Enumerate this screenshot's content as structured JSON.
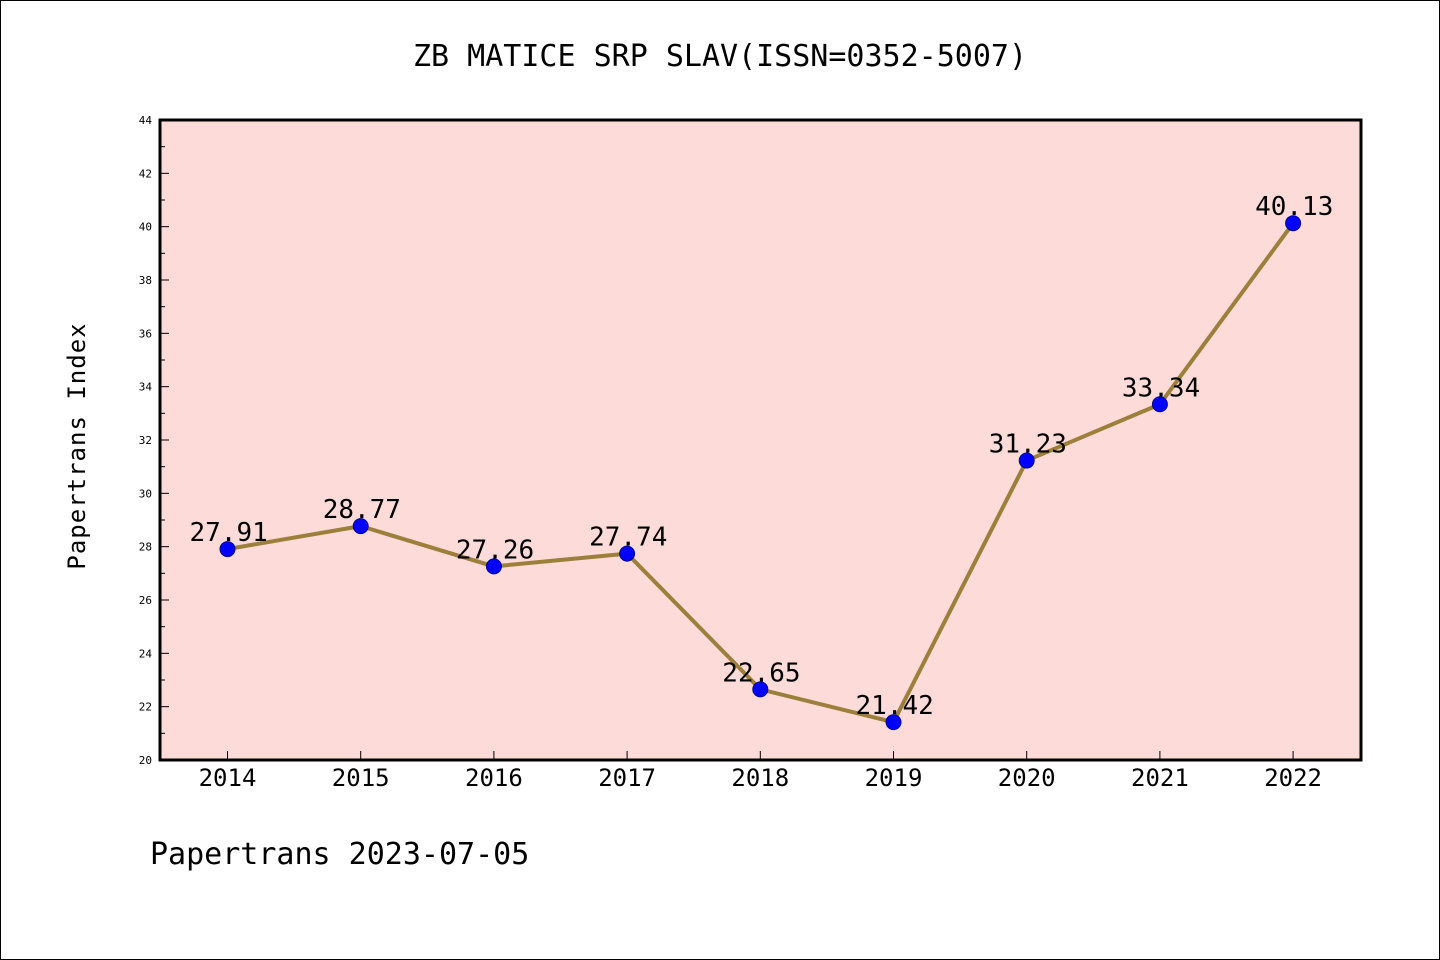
{
  "chart_data": {
    "type": "line",
    "title": "ZB MATICE SRP SLAV(ISSN=0352-5007)",
    "xlabel": "",
    "ylabel": "Papertrans Index",
    "categories": [
      "2014",
      "2015",
      "2016",
      "2017",
      "2018",
      "2019",
      "2020",
      "2021",
      "2022"
    ],
    "series": [
      {
        "values": [
          27.91,
          28.77,
          27.26,
          27.74,
          22.65,
          21.42,
          31.23,
          33.34,
          40.13
        ],
        "labels": [
          "27.91",
          "28.77",
          "27.26",
          "27.74",
          "22.65",
          "21.42",
          "31.23",
          "33.34",
          "40.13"
        ]
      }
    ],
    "ylim": [
      20,
      44
    ],
    "yticks": [
      "20",
      "22",
      "24",
      "26",
      "28",
      "30",
      "32",
      "34",
      "36",
      "38",
      "40",
      "42",
      "44"
    ],
    "grid": false,
    "colors": {
      "plot_background": "#fddbd8",
      "line": "#9b7f3a",
      "marker": "#0000ff",
      "axes": "#000000"
    }
  },
  "footer": "Papertrans 2023-07-05"
}
